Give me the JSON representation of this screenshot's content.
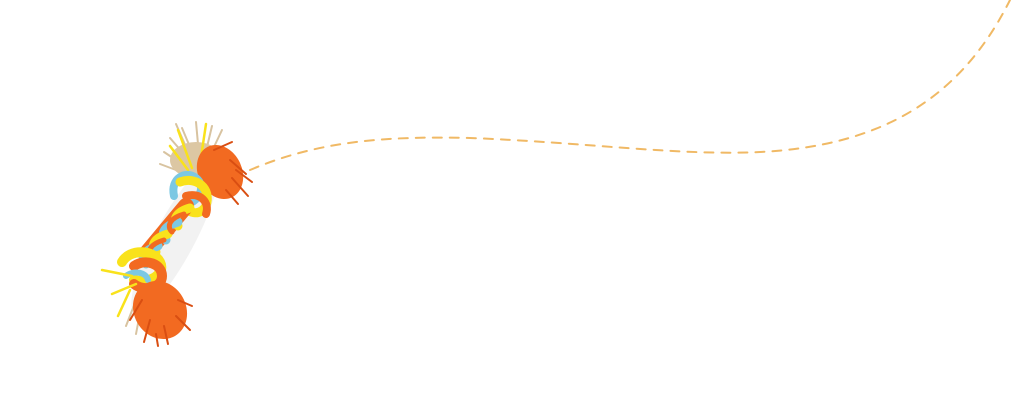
{
  "illustration": {
    "subject": "rope-dog-toy-icon",
    "colors": {
      "trail": "#f0b965",
      "orange": "#f26a21",
      "orange_dark": "#d94e12",
      "yellow": "#f9e21b",
      "blue": "#7cc8e3",
      "tan": "#d8c3a0"
    }
  }
}
